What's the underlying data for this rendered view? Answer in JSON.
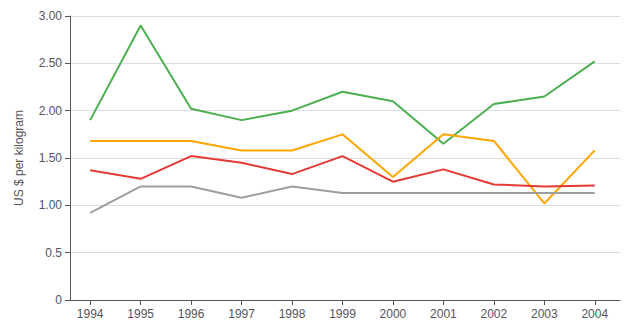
{
  "chart_data": {
    "type": "line",
    "x": [
      1994,
      1995,
      1996,
      1997,
      1998,
      1999,
      2000,
      2001,
      2002,
      2003,
      2004
    ],
    "series": [
      {
        "color": "#4caf50",
        "values": [
          1.9,
          2.9,
          2.02,
          1.9,
          2.0,
          2.2,
          2.1,
          1.65,
          2.07,
          2.15,
          2.52
        ]
      },
      {
        "color": "#ffa500",
        "values": [
          1.68,
          1.68,
          1.68,
          1.58,
          1.58,
          1.75,
          1.3,
          1.75,
          1.68,
          1.02,
          1.58
        ]
      },
      {
        "color": "#e53935",
        "values": [
          1.37,
          1.28,
          1.52,
          1.45,
          1.33,
          1.52,
          1.25,
          1.38,
          1.22,
          1.2,
          1.21
        ]
      },
      {
        "color": "#9e9e9e",
        "values": [
          0.92,
          1.2,
          1.2,
          1.08,
          1.2,
          1.13,
          1.13,
          1.13,
          1.13,
          1.13,
          1.13
        ]
      }
    ],
    "ylabel": "US $ per kilogram",
    "xlim": [
      1993.6,
      2004.5
    ],
    "xticks": [
      1994,
      1995,
      1996,
      1997,
      1998,
      1999,
      2000,
      2001,
      2002,
      2003,
      2004
    ],
    "ylim": [
      0,
      3.0
    ],
    "yticks": [
      0,
      0.5,
      {
        "value": 1.0,
        "label": "1.00"
      },
      {
        "value": 1.5,
        "label": "1.50"
      },
      {
        "value": 2.0,
        "label": "2.00"
      },
      {
        "value": 2.5,
        "label": "2.50"
      },
      {
        "value": 3.0,
        "label": "3.00"
      }
    ],
    "grid": "y"
  }
}
